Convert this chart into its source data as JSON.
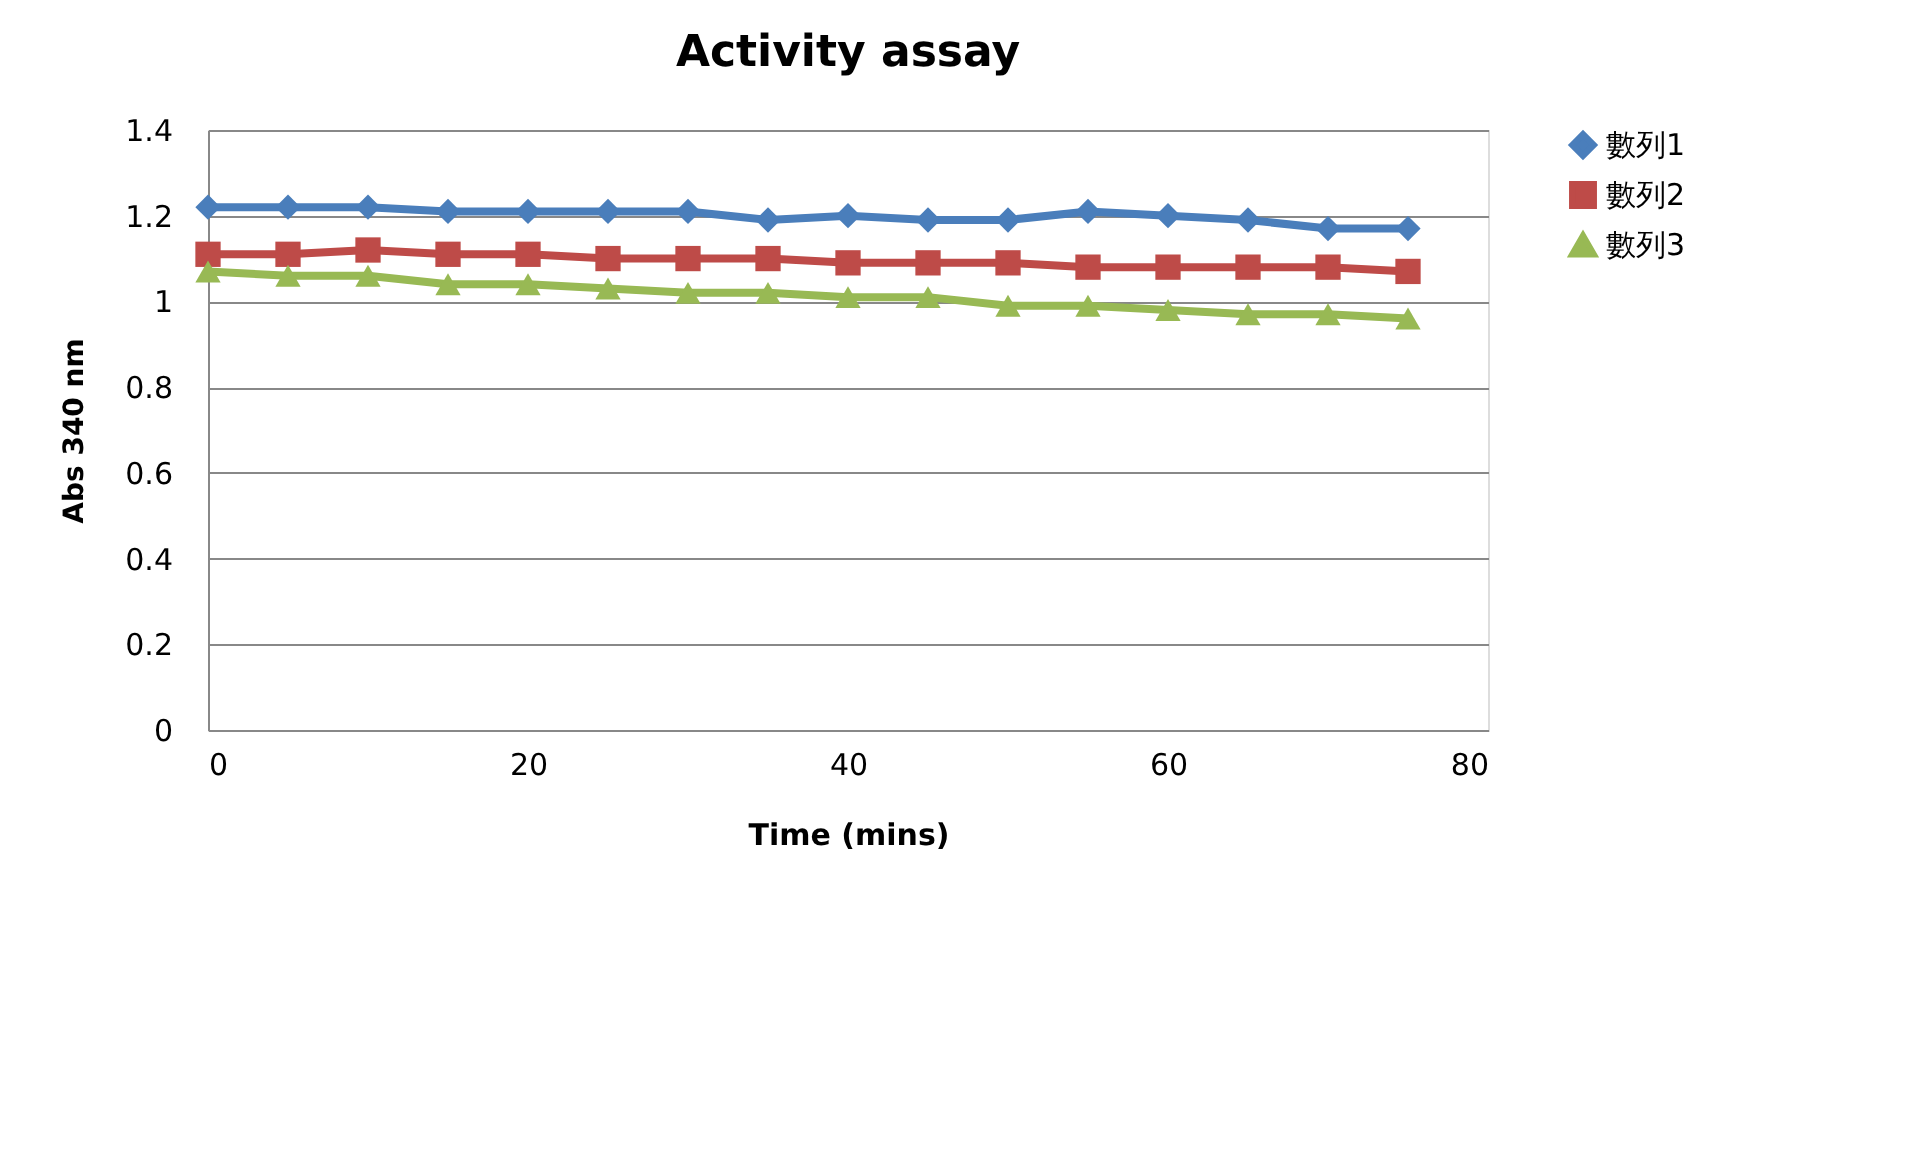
{
  "chart_data": {
    "type": "line",
    "title": "Activity assay",
    "xlabel": "Time (mins)",
    "ylabel": "Abs  340 nm",
    "x": [
      0,
      5,
      10,
      15,
      20,
      25,
      30,
      35,
      40,
      45,
      50,
      55,
      60,
      65,
      70,
      75
    ],
    "xlim": [
      0,
      80
    ],
    "xticks": [
      0,
      20,
      40,
      60,
      80
    ],
    "ylim": [
      0,
      1.4
    ],
    "yticks": [
      0,
      0.2,
      0.4,
      0.6,
      0.8,
      1,
      1.2,
      1.4
    ],
    "grid": "y",
    "legend": "right",
    "series": [
      {
        "name": "數列1",
        "color": "#4a7ebb",
        "marker": "diamond",
        "values": [
          1.22,
          1.22,
          1.22,
          1.21,
          1.21,
          1.21,
          1.21,
          1.19,
          1.2,
          1.19,
          1.19,
          1.21,
          1.2,
          1.19,
          1.17,
          1.17
        ]
      },
      {
        "name": "數列2",
        "color": "#be4b48",
        "marker": "square",
        "values": [
          1.11,
          1.11,
          1.12,
          1.11,
          1.11,
          1.1,
          1.1,
          1.1,
          1.09,
          1.09,
          1.09,
          1.08,
          1.08,
          1.08,
          1.08,
          1.07
        ]
      },
      {
        "name": "數列3",
        "color": "#98b954",
        "marker": "triangle",
        "values": [
          1.07,
          1.06,
          1.06,
          1.04,
          1.04,
          1.03,
          1.02,
          1.02,
          1.01,
          1.01,
          0.99,
          0.99,
          0.98,
          0.97,
          0.97,
          0.96
        ]
      }
    ]
  }
}
